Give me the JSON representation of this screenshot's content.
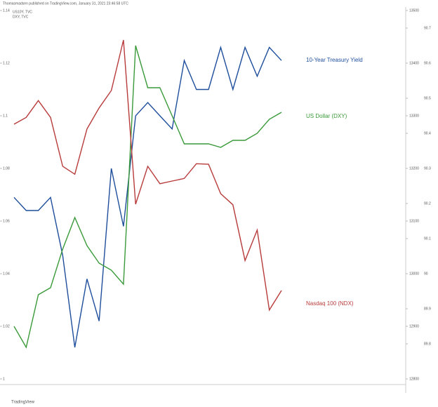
{
  "chart_data": {
    "type": "line",
    "title": "Thomasmadsen published on TradingView.com, January 31, 2021 23:46:58 UTC",
    "symbols": [
      "US10Y, TVC",
      "DXY, TVC"
    ],
    "footer": "TradingView",
    "ylim": [
      1.0,
      1.14
    ],
    "yticks": [
      1.0,
      1.02,
      1.04,
      1.06,
      1.08,
      1.1,
      1.12,
      1.14
    ],
    "y2lim": [
      89.7,
      90.75
    ],
    "y2ticks": [
      89.8,
      89.9,
      90.0,
      90.1,
      90.2,
      90.3,
      90.4,
      90.5,
      90.6,
      90.7
    ],
    "y3lim": [
      12800,
      13500
    ],
    "y3ticks": [
      12800,
      12900,
      13000,
      13100,
      13200,
      13300,
      13400,
      13500
    ],
    "series": [
      {
        "name": "10-Year Treasury Yield",
        "color": "#1f4e9c",
        "axis": "y",
        "values": [
          1.069,
          1.064,
          1.064,
          1.069,
          1.047,
          1.012,
          1.038,
          1.022,
          1.08,
          1.058,
          1.1,
          1.105,
          1.1,
          1.095,
          1.121,
          1.11,
          1.11,
          1.126,
          1.11,
          1.126,
          1.115,
          1.126,
          1.121
        ]
      },
      {
        "name": "US Dollar (DXY)",
        "color": "#3a9a3a",
        "axis": "y2",
        "values": [
          89.85,
          89.79,
          89.94,
          89.96,
          90.07,
          90.16,
          90.08,
          90.03,
          90.01,
          89.97,
          90.65,
          90.53,
          90.53,
          90.45,
          90.37,
          90.37,
          90.37,
          90.36,
          90.38,
          90.38,
          90.4,
          90.44,
          90.46
        ]
      },
      {
        "name": "Nasdaq 100 (NDX)",
        "color": "#b83b3b",
        "axis": "y3",
        "values": [
          13284,
          13297,
          13329,
          13297,
          13204,
          13189,
          13275,
          13315,
          13348,
          13444,
          13132,
          13204,
          13171,
          13176,
          13181,
          13209,
          13208,
          13152,
          13131,
          13025,
          13083,
          12931,
          12968
        ]
      }
    ]
  }
}
